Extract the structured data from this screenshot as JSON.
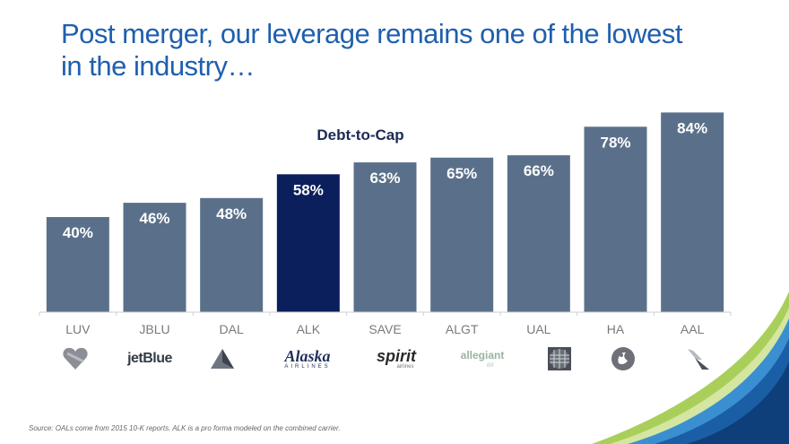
{
  "page": {
    "title_line1": "Post merger, our leverage remains one of the lowest",
    "title_line2": "in the industry…",
    "source": "Source: OALs come from 2015 10-K reports.  ALK is a pro forma modeled on the combined carrier."
  },
  "chart_data": {
    "type": "bar",
    "title": "Debt-to-Cap",
    "categories": [
      "LUV",
      "JBLU",
      "DAL",
      "ALK",
      "SAVE",
      "ALGT",
      "UAL",
      "HA",
      "AAL"
    ],
    "values": [
      40,
      46,
      48,
      58,
      63,
      65,
      66,
      78,
      84
    ],
    "value_labels": [
      "40%",
      "46%",
      "48%",
      "58%",
      "63%",
      "65%",
      "66%",
      "78%",
      "84%"
    ],
    "highlight": "ALK",
    "ylim": [
      0,
      100
    ],
    "grid": false,
    "colors": {
      "bar": "#5a708a",
      "highlight": "#0b1f5c"
    }
  },
  "logos": [
    {
      "airline": "LUV",
      "icon": "heart-icon"
    },
    {
      "airline": "JBLU",
      "text": "jetBlue"
    },
    {
      "airline": "DAL",
      "icon": "delta-triangle-icon"
    },
    {
      "airline": "ALK",
      "text": "Alaska",
      "subtext": "AIRLINES"
    },
    {
      "airline": "SAVE",
      "text": "spirit",
      "subtext": "airlines"
    },
    {
      "airline": "ALGT",
      "text": "allegiant",
      "subtext": "air"
    },
    {
      "airline": "UAL",
      "icon": "globe-icon"
    },
    {
      "airline": "HA",
      "icon": "pualani-icon"
    },
    {
      "airline": "AAL",
      "icon": "eagle-icon"
    }
  ]
}
